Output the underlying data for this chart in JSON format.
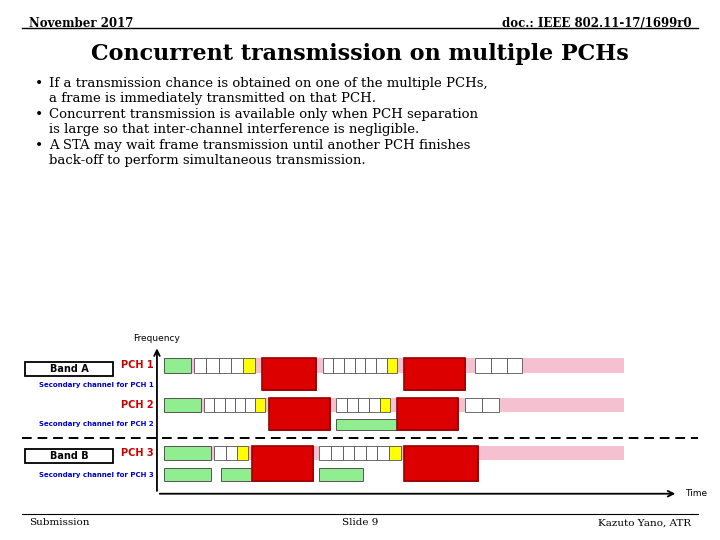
{
  "title": "Concurrent transmission on multiple PCHs",
  "header_left": "November 2017",
  "header_right": "doc.: IEEE 802.11-17/1699r0",
  "footer_left": "Submission",
  "footer_center": "Slide 9",
  "footer_right": "Kazuto Yano, ATR",
  "bullets": [
    "If a transmission chance is obtained on one of the multiple PCHs,\na frame is immediately transmitted on that PCH.",
    "Concurrent transmission is available only when PCH separation\nis large so that inter-channel interference is negligible.",
    "A STA may wait frame transmission until another PCH finishes\nback-off to perform simultaneous transmission."
  ],
  "bg_color": "#ffffff",
  "title_color": "#000000",
  "header_color": "#000000",
  "bullet_color": "#000000",
  "diagram": {
    "freq_label": "Frequency",
    "time_label": "Time",
    "band_a_label": "Band A",
    "band_b_label": "Band B",
    "pch1_label": "PCH 1",
    "pch2_label": "PCH 2",
    "pch3_label": "PCH 3",
    "sec_pch1": "Secondary channel for PCH 1",
    "sec_pch2": "Secondary channel for PCH 2",
    "sec_pch3": "Secondary channel for PCH 3",
    "light_green": "#90EE90",
    "pink": "#F5C0D0",
    "red_fill": "#DD0000",
    "yellow": "#FFFF00",
    "dark_gray": "#555555",
    "blue_label": "#0000CC",
    "red_label": "#CC0000"
  }
}
